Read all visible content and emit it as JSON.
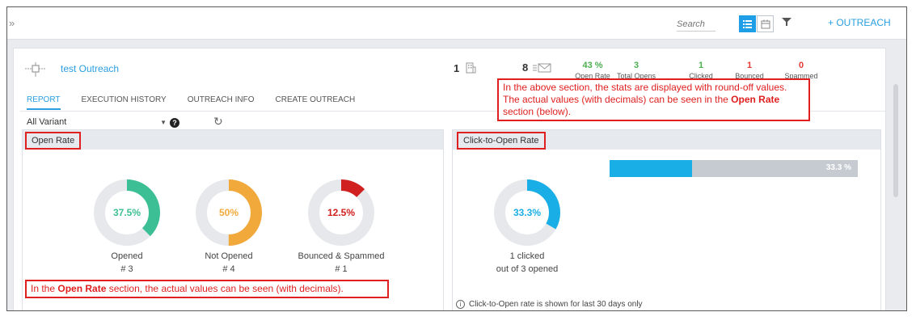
{
  "topbar": {
    "expand_glyph": "»",
    "search_placeholder": "Search",
    "outreach_button": "+ OUTREACH"
  },
  "header": {
    "title": "test Outreach",
    "recipient_count": "1",
    "sent_count": "8",
    "stats": [
      {
        "value": "43 %",
        "label": "Open Rate",
        "color": "#4caf50"
      },
      {
        "value": "3",
        "label": "Total Opens",
        "color": "#4caf50"
      },
      {
        "value": "1",
        "label": "Clicked",
        "color": "#4caf50"
      },
      {
        "value": "1",
        "label": "Bounced",
        "color": "#e53935"
      },
      {
        "value": "0",
        "label": "Spammed",
        "color": "#e53935"
      }
    ]
  },
  "tabs": [
    "REPORT",
    "EXECUTION HISTORY",
    "OUTREACH INFO",
    "CREATE OUTREACH"
  ],
  "variant": {
    "selected": "All Variant",
    "help_glyph": "?",
    "refresh_glyph": "↻"
  },
  "open_rate": {
    "title": "Open Rate",
    "donuts": [
      {
        "pct": "37.5%",
        "value": 37.5,
        "label": "Opened",
        "count": "# 3",
        "color": "#3dbf95"
      },
      {
        "pct": "50%",
        "value": 50,
        "label": "Not Opened",
        "count": "# 4",
        "color": "#f2a93b"
      },
      {
        "pct": "12.5%",
        "value": 12.5,
        "label": "Bounced & Spammed",
        "count": "# 1",
        "color": "#d0201f"
      }
    ]
  },
  "click_to_open": {
    "title": "Click-to-Open Rate",
    "pct": "33.3%",
    "value": 33.3,
    "bar_label": "33.3 %",
    "color": "#1aaee6",
    "line1": "1 clicked",
    "line2": "out of 3 opened",
    "info_glyph": "i",
    "info": "Click-to-Open rate is shown for last 30 days only"
  },
  "notes": {
    "top_1": "In the above section, the stats are displayed with round-off values.",
    "top_2": "The actual values (with decimals) can be seen in the",
    "top_bold": "Open Rate",
    "top_3": "section (below).",
    "bottom_1": "In the",
    "bottom_bold": "Open Rate",
    "bottom_2": "section, the actual values can be seen (with decimals)."
  }
}
